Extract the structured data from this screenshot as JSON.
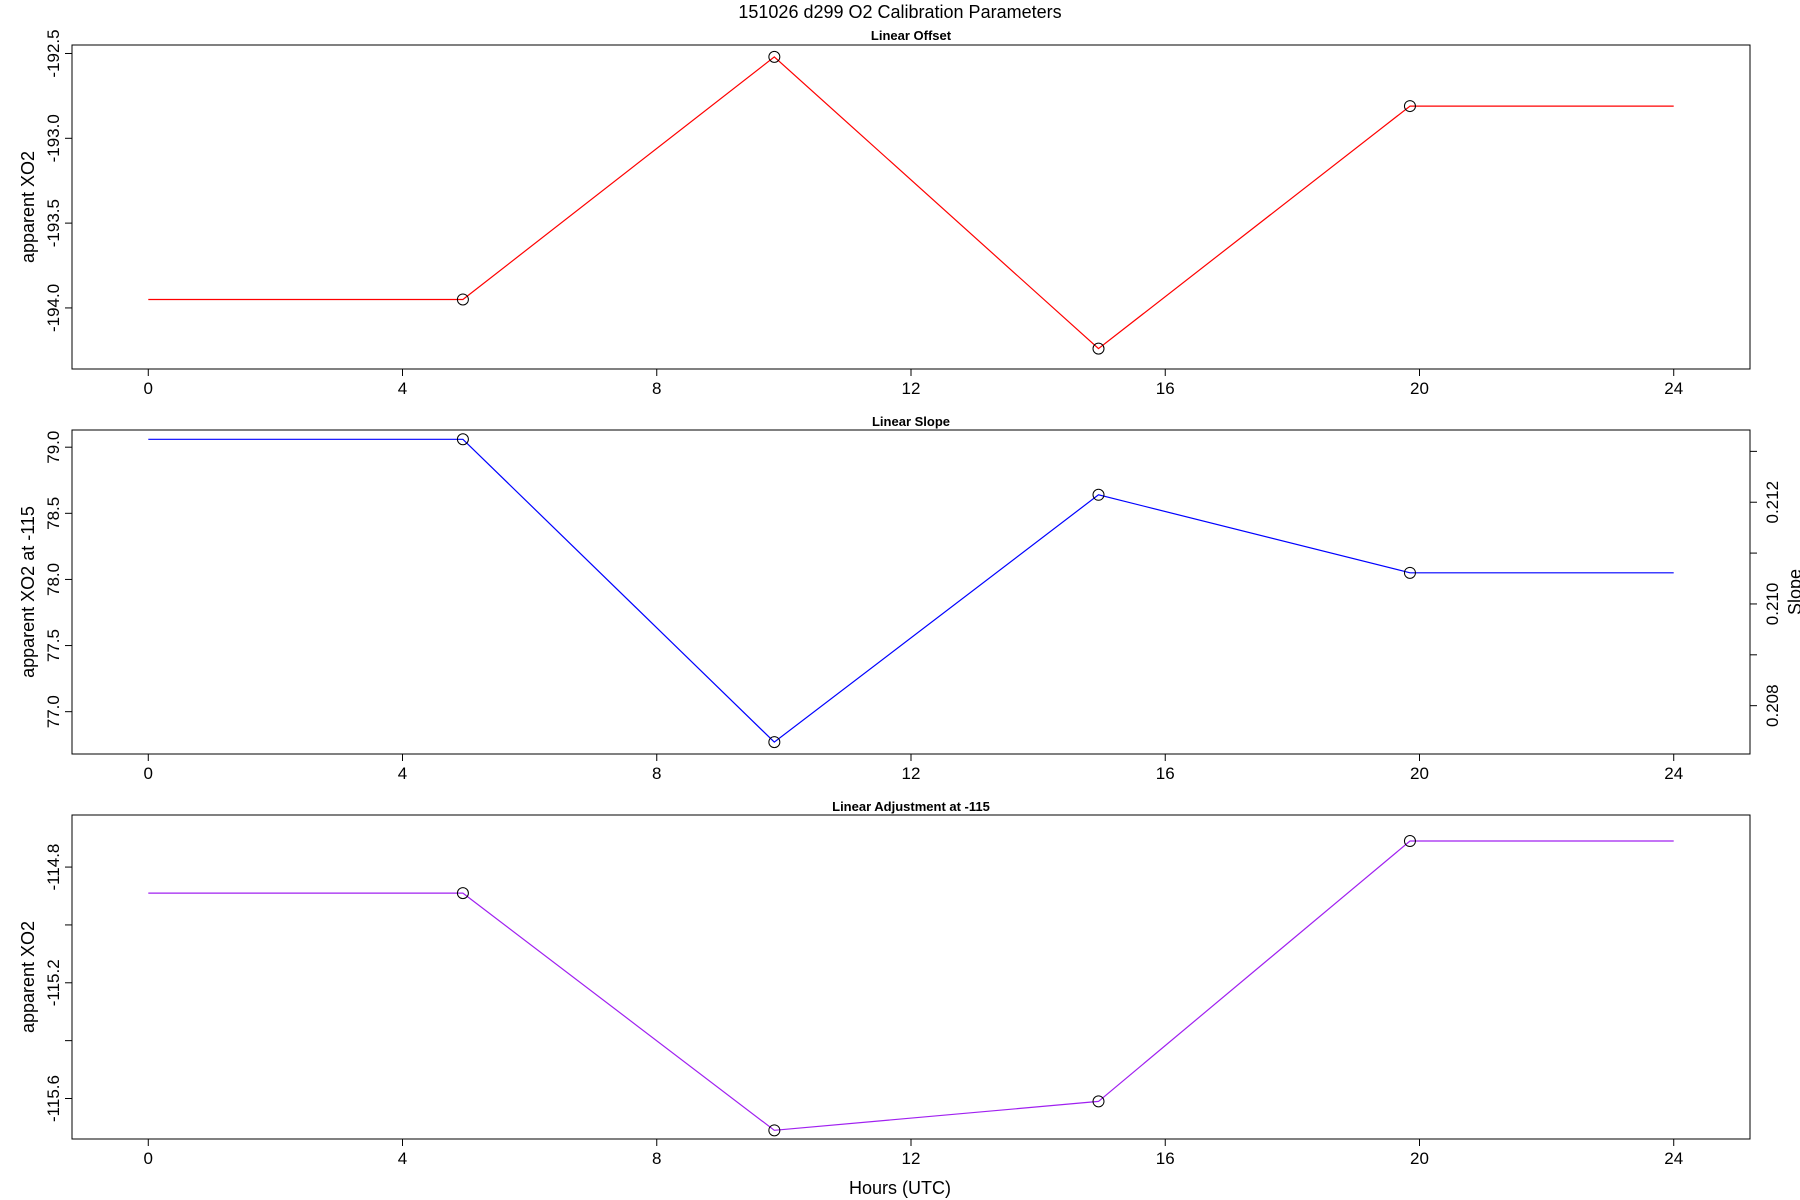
{
  "figure": {
    "title": "151026   d299   O2 Calibration Parameters",
    "xlabel": "Hours (UTC)"
  },
  "chart_data": [
    {
      "type": "line",
      "title": "Linear Offset",
      "xlabel": "",
      "ylabel": "apparent XO2",
      "color": "#ff0000",
      "xlim": [
        -1.2,
        25.2
      ],
      "ylim": [
        -194.36,
        -192.45
      ],
      "xticks": [
        0,
        4,
        8,
        12,
        16,
        20,
        24
      ],
      "yticks": [
        -194.0,
        -193.5,
        -193.0,
        -192.5
      ],
      "ytick_labels": [
        "-194.0",
        "-193.5",
        "-193.0",
        "-192.5"
      ],
      "x": [
        0,
        4.95,
        9.85,
        14.95,
        19.85,
        24
      ],
      "y": [
        -193.95,
        -193.95,
        -192.52,
        -194.24,
        -192.81,
        -192.81
      ],
      "markers": [
        false,
        true,
        true,
        true,
        true,
        false
      ]
    },
    {
      "type": "line",
      "title": "Linear Slope",
      "xlabel": "",
      "ylabel": "apparent XO2 at -115",
      "ylabel_right": "Slope",
      "color": "#0000ff",
      "xlim": [
        -1.2,
        25.2
      ],
      "ylim": [
        76.68,
        79.13
      ],
      "xticks": [
        0,
        4,
        8,
        12,
        16,
        20,
        24
      ],
      "yticks": [
        77.0,
        77.5,
        78.0,
        78.5,
        79.0
      ],
      "ytick_labels": [
        "77.0",
        "77.5",
        "78.0",
        "78.5",
        "79.0"
      ],
      "right_ticks": [
        0.208,
        0.209,
        0.21,
        0.211,
        0.212,
        0.213
      ],
      "right_tick_labels": [
        "0.208",
        "",
        "0.210",
        "",
        "0.212",
        ""
      ],
      "right_ylim": [
        0.20705,
        0.21342
      ],
      "x": [
        0,
        4.95,
        9.85,
        14.95,
        19.85,
        24
      ],
      "y": [
        79.06,
        79.06,
        76.77,
        78.64,
        78.05,
        78.05
      ],
      "markers": [
        false,
        true,
        true,
        true,
        true,
        false
      ]
    },
    {
      "type": "line",
      "title": "Linear Adjustment at -115",
      "xlabel": "Hours (UTC)",
      "ylabel": "apparent XO2",
      "color": "#a020f0",
      "xlim": [
        -1.2,
        25.2
      ],
      "ylim": [
        -115.74,
        -114.62
      ],
      "xticks": [
        0,
        4,
        8,
        12,
        16,
        20,
        24
      ],
      "yticks": [
        -115.6,
        -115.4,
        -115.2,
        -115.0,
        -114.8
      ],
      "ytick_labels": [
        "-115.6",
        "",
        "-115.2",
        "",
        "-114.8"
      ],
      "x": [
        0,
        4.95,
        9.85,
        14.95,
        19.85,
        24
      ],
      "y": [
        -114.89,
        -114.89,
        -115.71,
        -115.61,
        -114.71,
        -114.71
      ],
      "markers": [
        false,
        true,
        true,
        true,
        true,
        false
      ]
    }
  ]
}
